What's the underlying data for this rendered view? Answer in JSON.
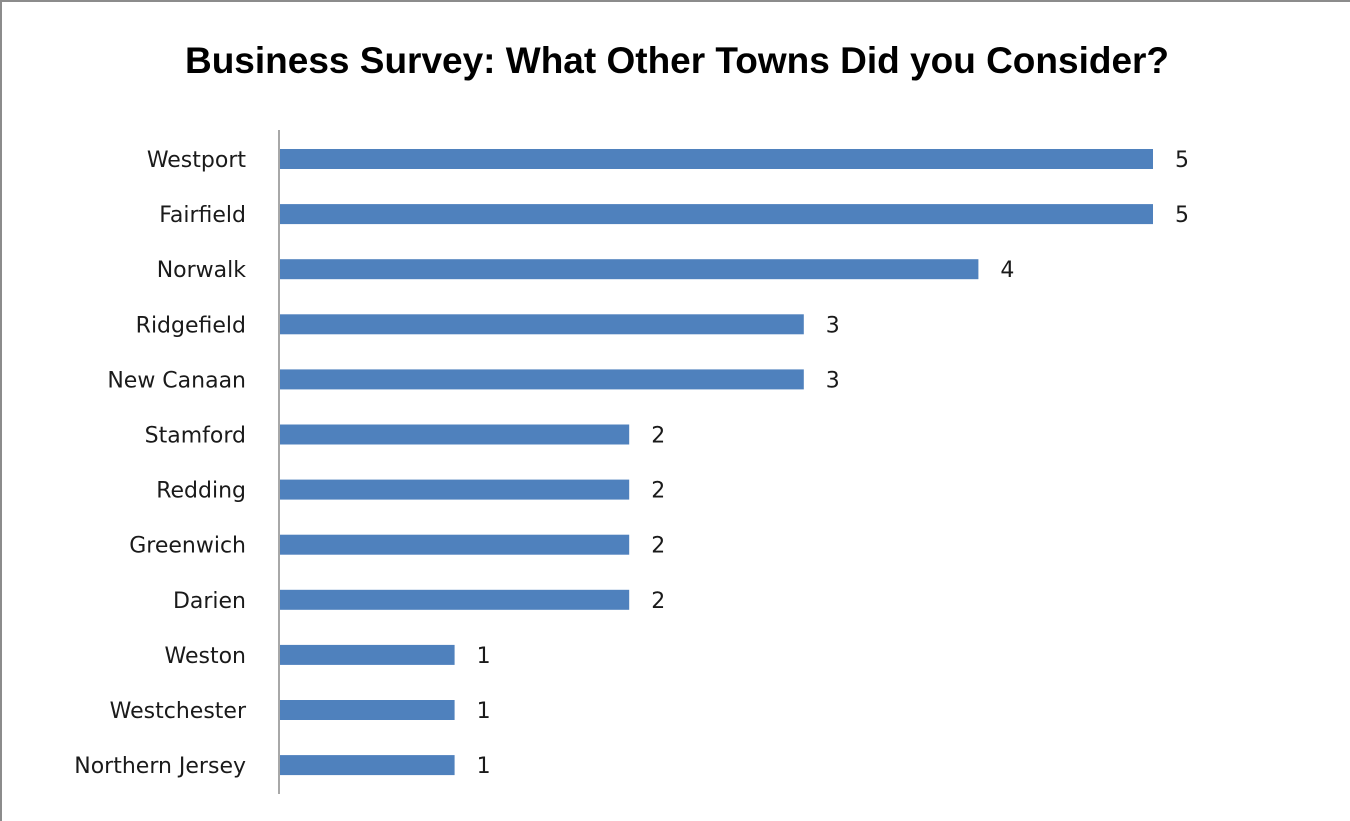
{
  "chart_data": {
    "type": "bar",
    "orientation": "horizontal",
    "title": "Business Survey: What Other Towns Did you Consider?",
    "categories": [
      "Westport",
      "Fairfield",
      "Norwalk",
      "Ridgefield",
      "New Canaan",
      "Stamford",
      "Redding",
      "Greenwich",
      "Darien",
      "Weston",
      "Westchester",
      "Northern Jersey"
    ],
    "values": [
      5,
      5,
      4,
      3,
      3,
      2,
      2,
      2,
      2,
      1,
      1,
      1
    ],
    "data_labels": true,
    "xlim": [
      0,
      5
    ],
    "grid": false,
    "legend": "none",
    "bar_color": "#4f81bd",
    "axis_color": "#8c8c8c"
  }
}
